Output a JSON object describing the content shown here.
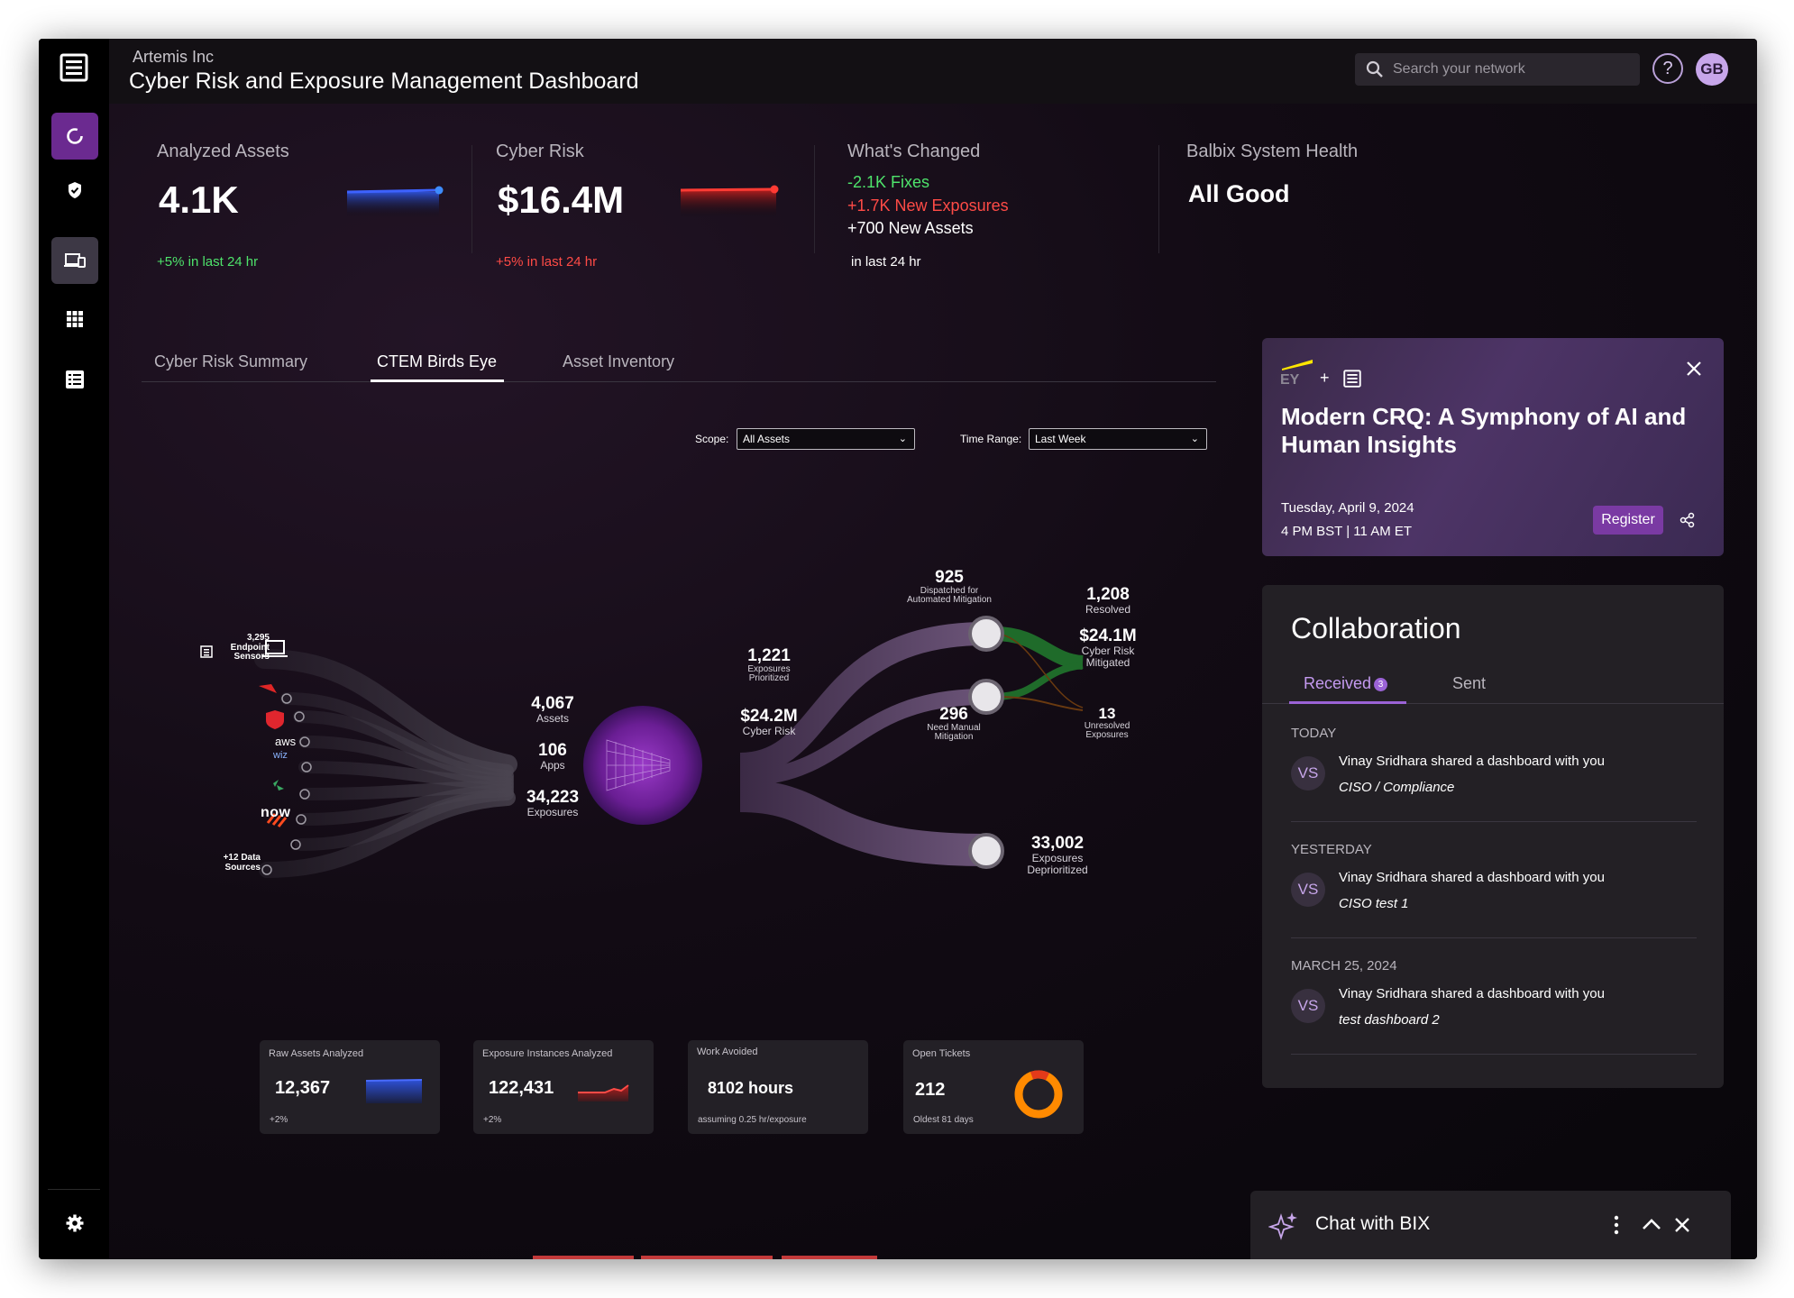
{
  "header": {
    "company": "Artemis Inc",
    "title": "Cyber Risk and Exposure Management Dashboard",
    "search_placeholder": "Search your network",
    "help_label": "?",
    "avatar": "GB"
  },
  "sidebar": {
    "logo": "layers-logo-icon",
    "items": [
      {
        "name": "sidebar-item-risk",
        "icon": "ring-icon",
        "active": true
      },
      {
        "name": "sidebar-item-security",
        "icon": "shield-icon"
      },
      {
        "name": "sidebar-item-devices",
        "icon": "devices-icon",
        "selected": true
      },
      {
        "name": "sidebar-item-apps",
        "icon": "grid-icon"
      },
      {
        "name": "sidebar-item-list",
        "icon": "list-icon"
      }
    ],
    "settings_icon": "gear-icon"
  },
  "kpis": {
    "analyzed_assets": {
      "label": "Analyzed Assets",
      "value": "4.1K",
      "delta": "+5% in last 24 hr"
    },
    "cyber_risk": {
      "label": "Cyber Risk",
      "value": "$16.4M",
      "delta": "+5% in last 24 hr"
    },
    "whats_changed": {
      "label": "What's Changed",
      "fixes": "-2.1K Fixes",
      "new_exposures": "+1.7K New Exposures",
      "new_assets": "+700 New Assets",
      "period": "in last 24 hr"
    },
    "system_health": {
      "label": "Balbix System Health",
      "value": "All Good"
    }
  },
  "tabs": [
    {
      "label": "Cyber Risk Summary"
    },
    {
      "label": "CTEM Birds Eye",
      "active": true
    },
    {
      "label": "Asset Inventory"
    }
  ],
  "filters": {
    "scope_label": "Scope:",
    "scope_value": "All Assets",
    "time_label": "Time Range:",
    "time_value": "Last Week"
  },
  "flow": {
    "endpoint": {
      "count": "3,295",
      "label1": "Endpoint",
      "label2": "Sensors"
    },
    "sources": [
      "aws",
      "wiz",
      "now"
    ],
    "more_sources": {
      "line1": "+12 Data",
      "line2": "Sources"
    },
    "assets": {
      "value": "4,067",
      "label": "Assets"
    },
    "apps": {
      "value": "106",
      "label": "Apps"
    },
    "exposures": {
      "value": "34,223",
      "label": "Exposures"
    },
    "prioritized": {
      "value": "1,221",
      "label1": "Exposures",
      "label2": "Prioritized"
    },
    "cyber_risk": {
      "value": "$24.2M",
      "label": "Cyber Risk"
    },
    "dispatched": {
      "value": "925",
      "label1": "Dispatched for",
      "label2": "Automated Mitigation"
    },
    "resolved": {
      "value": "1,208",
      "label": "Resolved"
    },
    "mitigated": {
      "value": "$24.1M",
      "label1": "Cyber Risk",
      "label2": "Mitigated"
    },
    "manual": {
      "value": "296",
      "label1": "Need Manual",
      "label2": "Mitigation"
    },
    "unresolved": {
      "value": "13",
      "label1": "Unresolved",
      "label2": "Exposures"
    },
    "deprioritized": {
      "value": "33,002",
      "label1": "Exposures",
      "label2": "Deprioritized"
    }
  },
  "cards": [
    {
      "title": "Raw Assets Analyzed",
      "value": "12,367",
      "sub": "+2%"
    },
    {
      "title": "Exposure Instances Analyzed",
      "value": "122,431",
      "sub": "+2%"
    },
    {
      "title": "Work Avoided",
      "value": "8102 hours",
      "sub": "assuming 0.25 hr/exposure"
    },
    {
      "title": "Open Tickets",
      "value": "212",
      "sub": "Oldest  81 days"
    }
  ],
  "promo": {
    "brand": "EY",
    "plus": "+",
    "title": "Modern CRQ: A Symphony of AI and Human Insights",
    "date": "Tuesday, April 9, 2024",
    "time": "4 PM BST | 11 AM ET",
    "register_label": "Register",
    "close_icon": "close-icon",
    "share_icon": "share-icon"
  },
  "collaboration": {
    "title": "Collaboration",
    "tab_received": "Received",
    "received_count": "3",
    "tab_sent": "Sent",
    "sections": [
      {
        "heading": "TODAY",
        "initials": "VS",
        "text": "Vinay Sridhara shared a dashboard with you",
        "sub": "CISO / Compliance"
      },
      {
        "heading": "YESTERDAY",
        "initials": "VS",
        "text": "Vinay Sridhara shared a dashboard with you",
        "sub": "CISO test 1"
      },
      {
        "heading": "MARCH 25, 2024",
        "initials": "VS",
        "text": "Vinay Sridhara shared a dashboard with you",
        "sub": "test dashboard 2"
      }
    ]
  },
  "chat": {
    "label": "Chat with BIX",
    "icon": "sparkle-icon"
  },
  "colors": {
    "accent": "#7a3aa3",
    "positive": "#4ee36b",
    "negative": "#ff4b46",
    "donut": "#ff8a00"
  }
}
